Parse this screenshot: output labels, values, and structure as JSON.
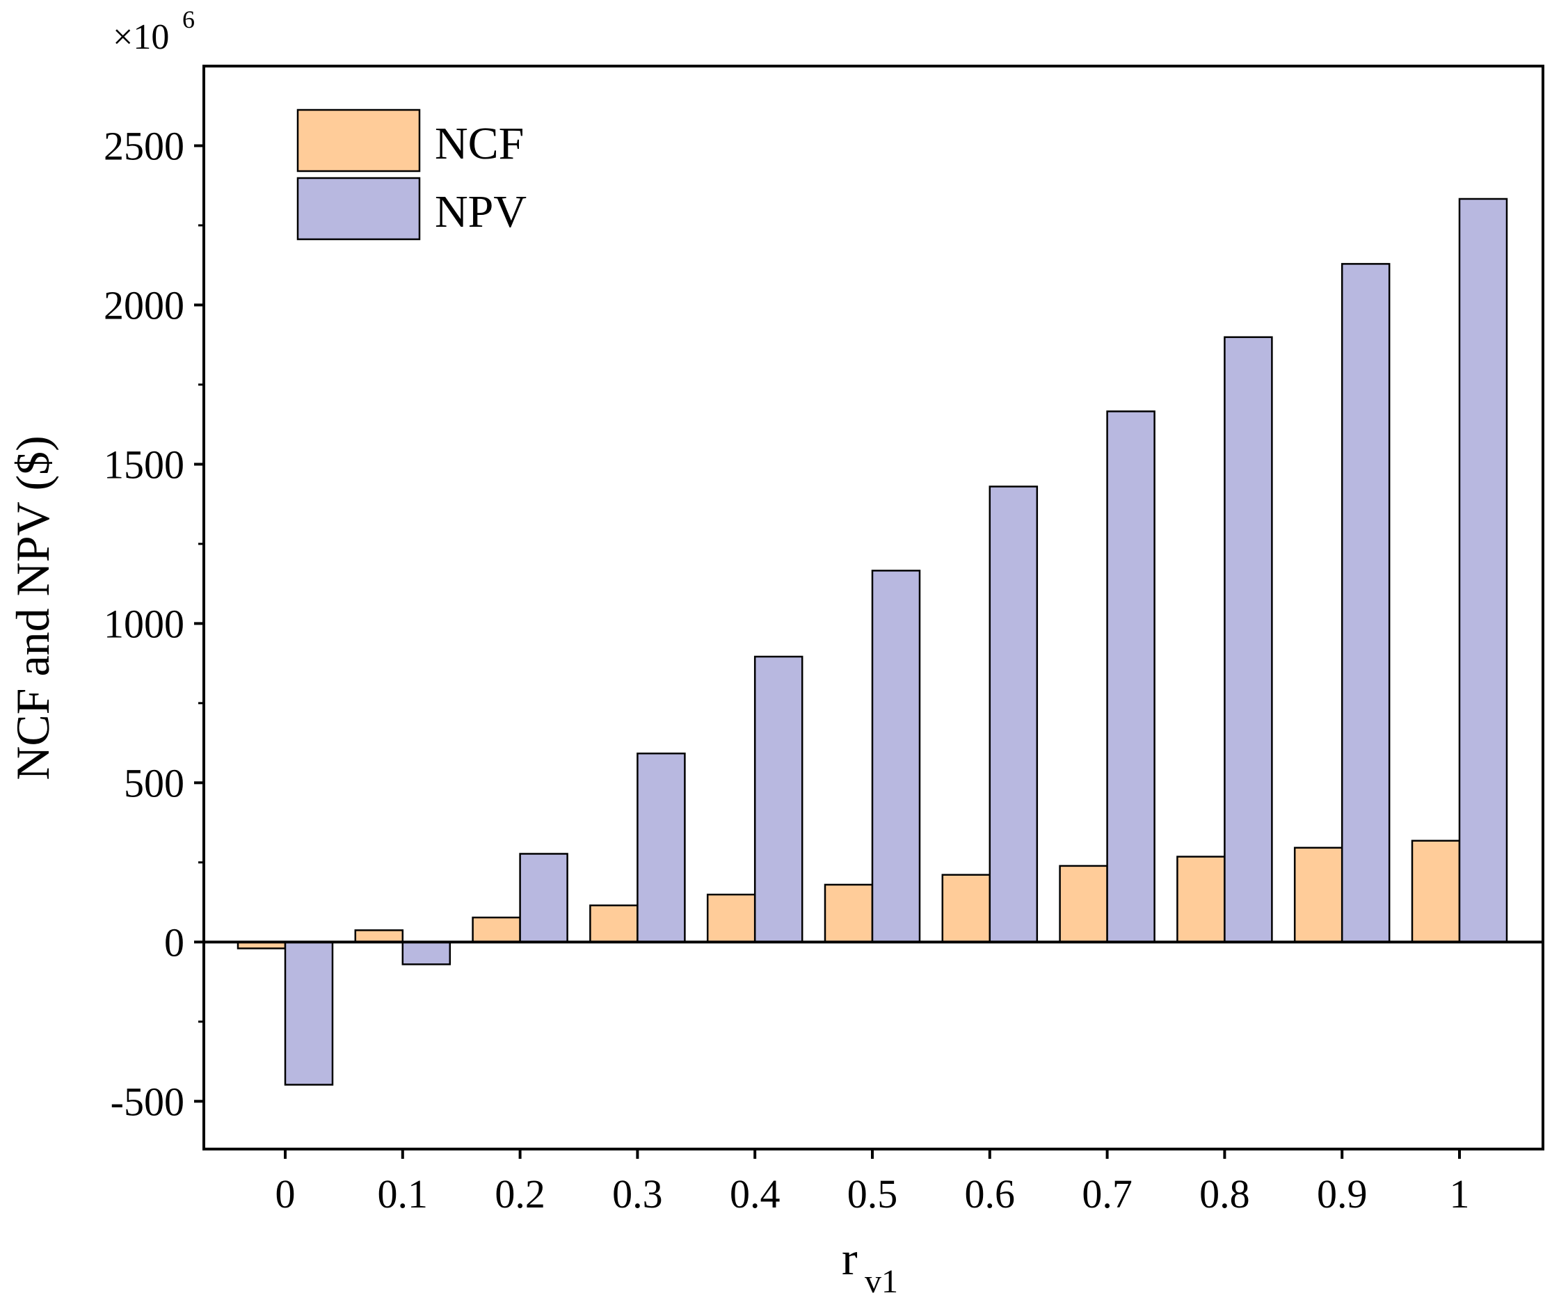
{
  "chart_data": {
    "type": "bar",
    "title": "",
    "xlabel": "r",
    "xlabel_subscript": "v1",
    "ylabel": "NCF and NPV ($)",
    "y_multiplier_label": "×10",
    "y_multiplier_exponent": "6",
    "ylim": [
      -650,
      2750
    ],
    "yticks": [
      -500,
      0,
      500,
      1000,
      1500,
      2000,
      2500
    ],
    "ytick_labels": [
      "-500",
      "0",
      "500",
      "1000",
      "1500",
      "2000",
      "2500"
    ],
    "categories": [
      "0",
      "0.1",
      "0.2",
      "0.3",
      "0.4",
      "0.5",
      "0.6",
      "0.7",
      "0.8",
      "0.9",
      "1"
    ],
    "grid": false,
    "legend_position": "top-left",
    "series": [
      {
        "name": "NCF",
        "color": "#FFCC99",
        "values": [
          -20,
          37,
          77,
          115,
          149,
          180,
          211,
          239,
          268,
          296,
          318
        ]
      },
      {
        "name": "NPV",
        "color": "#B8B8E0",
        "values": [
          -448,
          -70,
          277,
          592,
          896,
          1166,
          1430,
          1666,
          1899,
          2129,
          2333
        ]
      }
    ]
  }
}
